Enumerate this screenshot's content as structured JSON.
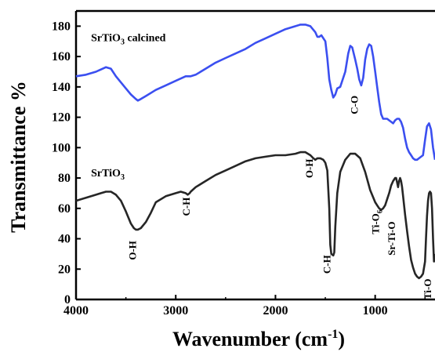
{
  "chart_data": {
    "type": "line",
    "xlabel": "Wavenumber (cm",
    "xlabel_sup": "-1",
    "xlabel_close": ")",
    "ylabel": "Transmittance %",
    "xlim": [
      4000,
      400
    ],
    "ylim": [
      0,
      190
    ],
    "x_reversed": true,
    "x_ticks": [
      4000,
      3000,
      2000,
      1000
    ],
    "y_ticks": [
      0,
      20,
      40,
      60,
      80,
      100,
      120,
      140,
      160,
      180
    ],
    "grid": false,
    "series": [
      {
        "name": "SrTiO3 calcined",
        "name_main": "SrTiO",
        "name_sub": "3",
        "name_rest": " calcined",
        "color": "#3b4ff0",
        "x": [
          4000,
          3900,
          3800,
          3700,
          3650,
          3600,
          3500,
          3450,
          3400,
          3380,
          3350,
          3300,
          3200,
          3100,
          3000,
          2900,
          2850,
          2800,
          2700,
          2600,
          2500,
          2400,
          2300,
          2200,
          2100,
          2000,
          1900,
          1800,
          1750,
          1700,
          1650,
          1600,
          1580,
          1560,
          1540,
          1500,
          1480,
          1460,
          1440,
          1420,
          1400,
          1380,
          1350,
          1300,
          1270,
          1250,
          1230,
          1200,
          1180,
          1160,
          1140,
          1120,
          1100,
          1080,
          1060,
          1040,
          1020,
          1000,
          980,
          960,
          940,
          920,
          900,
          880,
          860,
          840,
          820,
          800,
          780,
          760,
          740,
          720,
          700,
          680,
          660,
          640,
          620,
          600,
          580,
          560,
          540,
          520,
          500,
          480,
          460,
          440,
          420,
          400
        ],
        "y": [
          147,
          148,
          150,
          153,
          152,
          147,
          139,
          135,
          132,
          131,
          132,
          134,
          138,
          141,
          144,
          147,
          147,
          148,
          152,
          156,
          159,
          162,
          165,
          169,
          172,
          175,
          178,
          180,
          181,
          181,
          180,
          176,
          173,
          173,
          174,
          170,
          159,
          145,
          138,
          133,
          135,
          139,
          140,
          150,
          162,
          167,
          166,
          158,
          152,
          145,
          141,
          146,
          158,
          165,
          168,
          167,
          160,
          150,
          140,
          130,
          122,
          119,
          119,
          119,
          118,
          117,
          116,
          118,
          119,
          119,
          117,
          113,
          106,
          100,
          97,
          95,
          93,
          92,
          92,
          93,
          94,
          95,
          105,
          114,
          116,
          112,
          100,
          92
        ]
      },
      {
        "name": "SrTiO3",
        "name_main": "SrTiO",
        "name_sub": "3",
        "name_rest": "",
        "color": "#262626",
        "x": [
          4000,
          3900,
          3800,
          3750,
          3700,
          3650,
          3600,
          3550,
          3500,
          3450,
          3420,
          3400,
          3380,
          3350,
          3300,
          3250,
          3200,
          3100,
          3000,
          2950,
          2900,
          2880,
          2860,
          2850,
          2800,
          2700,
          2600,
          2500,
          2400,
          2300,
          2200,
          2100,
          2000,
          1900,
          1800,
          1750,
          1700,
          1650,
          1620,
          1600,
          1580,
          1550,
          1520,
          1500,
          1480,
          1460,
          1450,
          1440,
          1420,
          1410,
          1400,
          1380,
          1350,
          1300,
          1250,
          1200,
          1150,
          1100,
          1050,
          1000,
          980,
          960,
          940,
          920,
          900,
          880,
          860,
          840,
          820,
          800,
          790,
          780,
          770,
          760,
          750,
          740,
          730,
          720,
          700,
          680,
          660,
          640,
          620,
          600,
          580,
          560,
          540,
          520,
          500,
          490,
          480,
          470,
          460,
          450,
          440,
          430,
          420,
          410,
          400
        ],
        "y": [
          65,
          67,
          69,
          70,
          71,
          71,
          69,
          65,
          58,
          50,
          47,
          46,
          46,
          47,
          51,
          57,
          64,
          68,
          70,
          71,
          70,
          69,
          70,
          71,
          74,
          78,
          82,
          85,
          88,
          91,
          93,
          94,
          95,
          95,
          96,
          97,
          97,
          95,
          93,
          92,
          93,
          93,
          92,
          90,
          85,
          60,
          36,
          30,
          29,
          31,
          48,
          70,
          84,
          92,
          96,
          96,
          93,
          84,
          72,
          64,
          62,
          60,
          59,
          60,
          62,
          66,
          70,
          75,
          78,
          80,
          80,
          77,
          74,
          78,
          80,
          78,
          74,
          68,
          56,
          45,
          35,
          26,
          21,
          17,
          15,
          14,
          15,
          17,
          25,
          40,
          55,
          65,
          70,
          71,
          70,
          60,
          40,
          25,
          30
        ]
      }
    ],
    "series_labels": [
      {
        "series": 0,
        "x": 3850,
        "y": 170
      },
      {
        "series": 1,
        "x": 3850,
        "y": 81
      }
    ],
    "annotations": [
      {
        "text": "O-H",
        "x": 3400,
        "y": 26,
        "rotate": -90
      },
      {
        "text": "C-H",
        "x": 2860,
        "y": 55,
        "rotate": -90
      },
      {
        "text": "O-H",
        "x": 1625,
        "y": 80,
        "rotate": -90
      },
      {
        "text": "C-H",
        "x": 1450,
        "y": 17,
        "rotate": -90
      },
      {
        "text": "C-O",
        "x": 1175,
        "y": 122,
        "rotate": -90
      },
      {
        "text": "Ti-O",
        "sub": "6",
        "x": 960,
        "y": 43,
        "rotate": -90
      },
      {
        "text": "Sr-Ti-O",
        "x": 800,
        "y": 29,
        "rotate": -90
      },
      {
        "text": "Ti-O",
        "x": 440,
        "y": 0,
        "rotate": -90
      }
    ]
  }
}
